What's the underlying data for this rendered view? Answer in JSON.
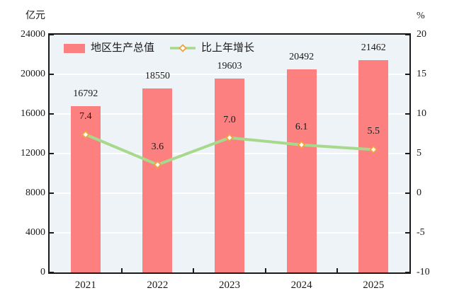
{
  "chart_data": {
    "type": "bar+line",
    "categories": [
      "2021",
      "2022",
      "2023",
      "2024",
      "2025"
    ],
    "series": [
      {
        "name": "地区生产总值",
        "type": "bar",
        "axis": "left",
        "values": [
          16792,
          18550,
          19603,
          20492,
          21462
        ],
        "labels": [
          "16792",
          "18550",
          "19603",
          "20492",
          "21462"
        ],
        "color": "#FC8080"
      },
      {
        "name": "比上年增长",
        "type": "line",
        "axis": "right",
        "values": [
          7.4,
          3.6,
          7.0,
          6.1,
          5.5
        ],
        "labels": [
          "7.4",
          "3.6",
          "7.0",
          "6.1",
          "5.5"
        ],
        "color": "#A7D98C",
        "marker": "diamond",
        "marker_stroke": "#F0A340",
        "marker_fill": "#FFFEF6"
      }
    ],
    "left_axis": {
      "unit": "亿元",
      "min": 0,
      "max": 24000,
      "step": 4000,
      "ticks": [
        "24000",
        "20000",
        "16000",
        "12000",
        "8000",
        "4000",
        "0"
      ]
    },
    "right_axis": {
      "unit": "%",
      "min": -10,
      "max": 20,
      "step": 5,
      "ticks": [
        "20",
        "15",
        "10",
        "5",
        "0",
        "-5",
        "-10"
      ]
    },
    "style": {
      "plot_bg": "#EDF3F7",
      "grid_color": "#FFFFFF",
      "axis_color": "#1a1a1a",
      "text_color": "#1a1a1a"
    },
    "grid": true,
    "legend_position": "top-left-inside",
    "title": ""
  }
}
